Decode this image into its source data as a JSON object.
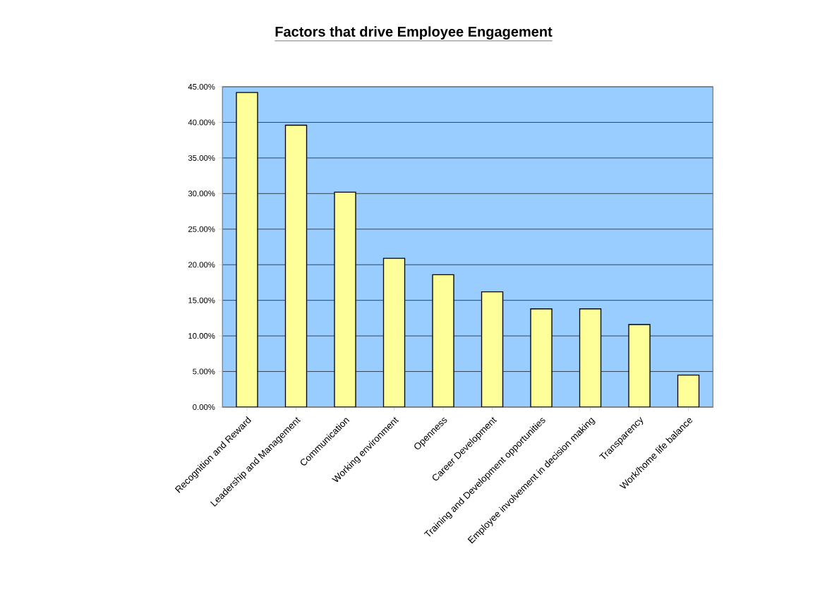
{
  "chart_data": {
    "type": "bar",
    "title": "Factors that drive Employee Engagement",
    "categories": [
      "Recognition and Reward",
      "Leadership and Management",
      "Communication",
      "Working environment",
      "Openness",
      "Career Development",
      "Training and Development opportunities",
      "Employee involvement in decision making",
      "Transparency",
      "Work/home life balance"
    ],
    "values": [
      44.2,
      39.6,
      30.2,
      20.9,
      18.6,
      16.2,
      13.8,
      13.8,
      11.6,
      4.5
    ],
    "color": "#ffff99",
    "ylim": [
      0,
      45
    ],
    "yticks": [
      {
        "value": 0,
        "label": "0.00%"
      },
      {
        "value": 5,
        "label": "5.00%"
      },
      {
        "value": 10,
        "label": "10.00%"
      },
      {
        "value": 15,
        "label": "15.00%"
      },
      {
        "value": 20,
        "label": "20.00%"
      },
      {
        "value": 25,
        "label": "25.00%"
      },
      {
        "value": 30,
        "label": "30.00%"
      },
      {
        "value": 35,
        "label": "35.00%"
      },
      {
        "value": 40,
        "label": "40.00%"
      },
      {
        "value": 45,
        "label": "45.00%"
      }
    ],
    "grid": "y"
  }
}
